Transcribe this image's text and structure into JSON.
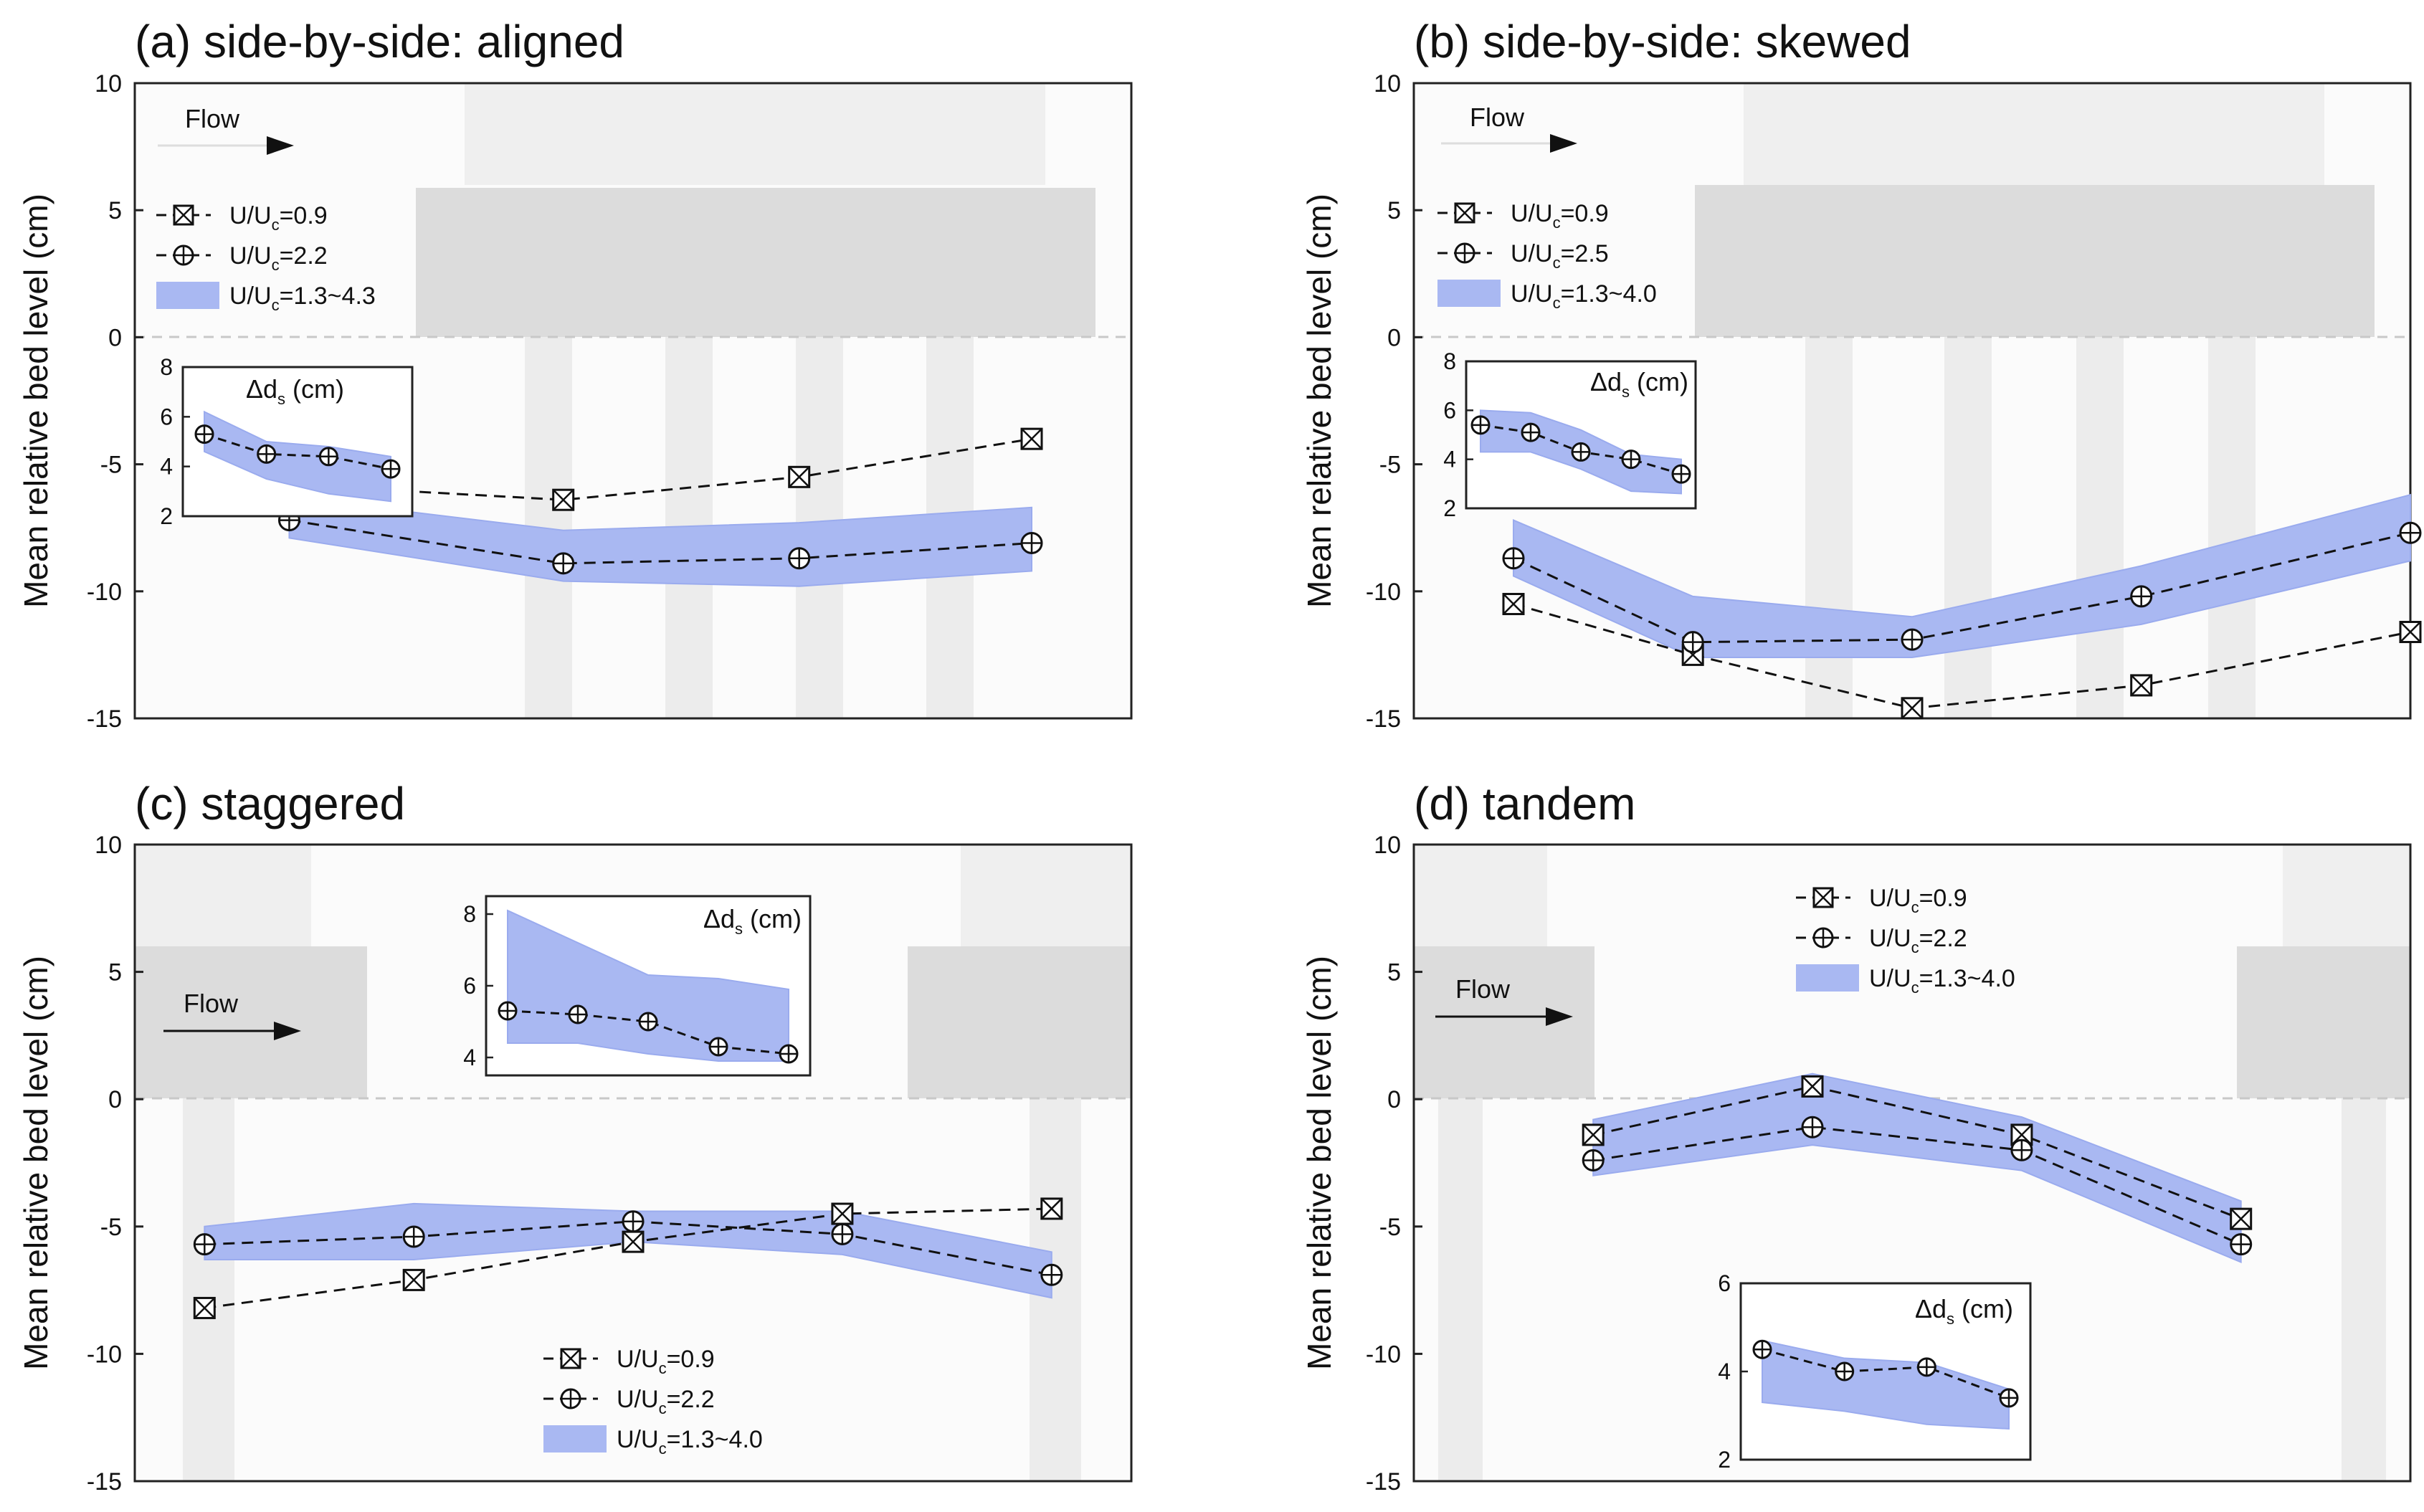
{
  "figure": {
    "description_hidden": false
  },
  "chart_data": [
    {
      "id": "a",
      "type": "line",
      "title": "(a) side-by-side: aligned",
      "ylabel": "Mean relative bed level (cm)",
      "xlabel": "",
      "ylim": [
        -15,
        10
      ],
      "yticks": [
        10,
        5,
        0,
        -5,
        -10,
        -15
      ],
      "flow_label": "Flow",
      "x": [
        0.155,
        0.43,
        0.6667,
        0.9
      ],
      "series": [
        {
          "name": "U/Uc=0.9",
          "label_main": "U/U",
          "label_sub": "c",
          "label_rest": "=0.9",
          "marker": "box-x",
          "x": [
            0.155,
            0.43,
            0.6667,
            0.9
          ],
          "values": [
            -5.8,
            -6.4,
            -5.5,
            -4.0
          ]
        },
        {
          "name": "U/Uc=2.2",
          "label_main": "U/U",
          "label_sub": "c",
          "label_rest": "=2.2",
          "marker": "circle-plus",
          "x": [
            0.155,
            0.43,
            0.6667,
            0.9
          ],
          "values": [
            -7.2,
            -8.9,
            -8.7,
            -8.1
          ]
        },
        {
          "name": "U/Uc=1.3~4.3",
          "label_main": "U/U",
          "label_sub": "c",
          "label_rest": "=1.3~4.3",
          "marker": "band",
          "x": [
            0.155,
            0.43,
            0.6667,
            0.9
          ],
          "upper": [
            -6.3,
            -7.6,
            -7.3,
            -6.7
          ],
          "lower": [
            -7.9,
            -9.6,
            -9.8,
            -9.2
          ]
        }
      ],
      "inset": {
        "title_main": "Δd",
        "title_sub": "s",
        "title_rest": " (cm)",
        "ylim": [
          2,
          8
        ],
        "yticks": [
          8,
          6,
          4,
          2
        ],
        "values": [
          5.3,
          4.5,
          4.4,
          3.9
        ],
        "upper": [
          6.2,
          5.0,
          4.8,
          4.4
        ],
        "lower": [
          4.6,
          3.5,
          2.9,
          2.6
        ]
      }
    },
    {
      "id": "b",
      "type": "line",
      "title": "(b) side-by-side: skewed",
      "ylabel": "Mean relative bed level (cm)",
      "xlabel": "",
      "ylim": [
        -15,
        10
      ],
      "yticks": [
        10,
        5,
        0,
        -5,
        -10,
        -15
      ],
      "flow_label": "Flow",
      "x": [
        0.1,
        0.28,
        0.5,
        0.73,
        1.0
      ],
      "series": [
        {
          "name": "U/Uc=0.9",
          "label_main": "U/U",
          "label_sub": "c",
          "label_rest": "=0.9",
          "marker": "box-x",
          "x": [
            0.1,
            0.28,
            0.5,
            0.73,
            1.0
          ],
          "values": [
            -10.5,
            -12.5,
            -14.6,
            -13.7,
            -11.6
          ]
        },
        {
          "name": "U/Uc=2.5",
          "label_main": "U/U",
          "label_sub": "c",
          "label_rest": "=2.5",
          "marker": "circle-plus",
          "x": [
            0.1,
            0.28,
            0.5,
            0.73,
            1.0
          ],
          "values": [
            -8.7,
            -12.0,
            -11.9,
            -10.2,
            -7.7
          ]
        },
        {
          "name": "U/Uc=1.3~4.0",
          "label_main": "U/U",
          "label_sub": "c",
          "label_rest": "=1.3~4.0",
          "marker": "band",
          "x": [
            0.1,
            0.28,
            0.5,
            0.73,
            1.0
          ],
          "upper": [
            -7.2,
            -10.2,
            -11.0,
            -9.0,
            -6.2
          ],
          "lower": [
            -9.4,
            -12.6,
            -12.6,
            -11.3,
            -8.8
          ]
        }
      ],
      "inset": {
        "title_main": "Δd",
        "title_sub": "s",
        "title_rest": " (cm)",
        "ylim": [
          2,
          8
        ],
        "yticks": [
          8,
          6,
          4,
          2
        ],
        "values": [
          5.4,
          5.1,
          4.3,
          4.0,
          3.4
        ],
        "upper": [
          6.0,
          5.9,
          5.2,
          4.2,
          4.0
        ],
        "lower": [
          4.3,
          4.3,
          3.6,
          2.7,
          2.6
        ]
      }
    },
    {
      "id": "c",
      "type": "line",
      "title": "(c) staggered",
      "ylabel": "Mean relative bed level (cm)",
      "xlabel": "",
      "ylim": [
        -15,
        10
      ],
      "yticks": [
        10,
        5,
        0,
        -5,
        -10,
        -15
      ],
      "flow_label": "Flow",
      "x": [
        0.07,
        0.28,
        0.5,
        0.71,
        0.92
      ],
      "series": [
        {
          "name": "U/Uc=0.9",
          "label_main": "U/U",
          "label_sub": "c",
          "label_rest": "=0.9",
          "marker": "box-x",
          "x": [
            0.07,
            0.28,
            0.5,
            0.71,
            0.92
          ],
          "values": [
            -8.2,
            -7.1,
            -5.6,
            -4.5,
            -4.3
          ]
        },
        {
          "name": "U/Uc=2.2",
          "label_main": "U/U",
          "label_sub": "c",
          "label_rest": "=2.2",
          "marker": "circle-plus",
          "x": [
            0.07,
            0.28,
            0.5,
            0.71,
            0.92
          ],
          "values": [
            -5.7,
            -5.4,
            -4.8,
            -5.3,
            -6.9
          ]
        },
        {
          "name": "U/Uc=1.3~4.0",
          "label_main": "U/U",
          "label_sub": "c",
          "label_rest": "=1.3~4.0",
          "marker": "band",
          "x": [
            0.07,
            0.28,
            0.5,
            0.71,
            0.92
          ],
          "upper": [
            -5.0,
            -4.1,
            -4.4,
            -4.4,
            -6.0
          ],
          "lower": [
            -6.3,
            -6.3,
            -5.6,
            -6.1,
            -7.8
          ]
        }
      ],
      "inset": {
        "title_main": "Δd",
        "title_sub": "s",
        "title_rest": " (cm)",
        "ylim": [
          3.5,
          8.5
        ],
        "yticks": [
          8,
          6,
          4
        ],
        "values": [
          5.3,
          5.2,
          5.0,
          4.3,
          4.1
        ],
        "upper": [
          8.1,
          7.2,
          6.3,
          6.2,
          5.9
        ],
        "lower": [
          4.4,
          4.4,
          4.1,
          3.9,
          3.9
        ]
      }
    },
    {
      "id": "d",
      "type": "line",
      "title": "(d) tandem",
      "ylabel": "Mean relative bed level (cm)",
      "xlabel": "",
      "ylim": [
        -15,
        10
      ],
      "yticks": [
        10,
        5,
        0,
        -5,
        -10,
        -15
      ],
      "flow_label": "Flow",
      "x": [
        0.18,
        0.4,
        0.61,
        0.83
      ],
      "series": [
        {
          "name": "U/Uc=0.9",
          "label_main": "U/U",
          "label_sub": "c",
          "label_rest": "=0.9",
          "marker": "box-x",
          "x": [
            0.18,
            0.4,
            0.61,
            0.83
          ],
          "values": [
            -1.4,
            0.5,
            -1.4,
            -4.7
          ]
        },
        {
          "name": "U/Uc=2.2",
          "label_main": "U/U",
          "label_sub": "c",
          "label_rest": "=2.2",
          "marker": "circle-plus",
          "x": [
            0.18,
            0.4,
            0.61,
            0.83
          ],
          "values": [
            -2.4,
            -1.1,
            -2.0,
            -5.7
          ]
        },
        {
          "name": "U/Uc=1.3~4.0",
          "label_main": "U/U",
          "label_sub": "c",
          "label_rest": "=1.3~4.0",
          "marker": "band",
          "x": [
            0.18,
            0.4,
            0.61,
            0.83
          ],
          "upper": [
            -0.8,
            1.0,
            -0.7,
            -4.0
          ],
          "lower": [
            -3.0,
            -1.8,
            -2.8,
            -6.4
          ]
        }
      ],
      "inset": {
        "title_main": "Δd",
        "title_sub": "s",
        "title_rest": " (cm)",
        "ylim": [
          2,
          6
        ],
        "yticks": [
          6,
          4,
          2
        ],
        "values": [
          4.5,
          4.0,
          4.1,
          3.4
        ],
        "upper": [
          4.7,
          4.3,
          4.2,
          3.6
        ],
        "lower": [
          3.3,
          3.1,
          2.8,
          2.7
        ]
      }
    }
  ]
}
